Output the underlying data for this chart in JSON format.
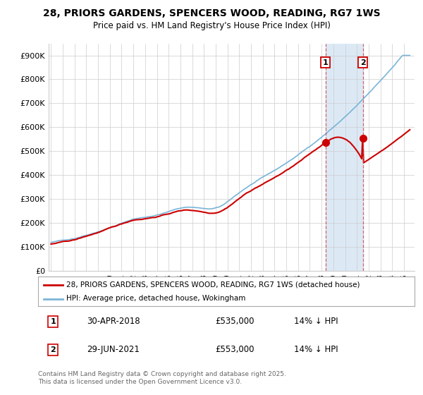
{
  "title_line1": "28, PRIORS GARDENS, SPENCERS WOOD, READING, RG7 1WS",
  "title_line2": "Price paid vs. HM Land Registry's House Price Index (HPI)",
  "yticks": [
    0,
    100000,
    200000,
    300000,
    400000,
    500000,
    600000,
    700000,
    800000,
    900000
  ],
  "ytick_labels": [
    "£0",
    "£100K",
    "£200K",
    "£300K",
    "£400K",
    "£500K",
    "£600K",
    "£700K",
    "£800K",
    "£900K"
  ],
  "hpi_color": "#7ab4d8",
  "price_color": "#cc0000",
  "ann1_year": 2018.33,
  "ann2_year": 2021.5,
  "ann1_price": 535000,
  "ann2_price": 553000,
  "legend_label1": "28, PRIORS GARDENS, SPENCERS WOOD, READING, RG7 1WS (detached house)",
  "legend_label2": "HPI: Average price, detached house, Wokingham",
  "footer": "Contains HM Land Registry data © Crown copyright and database right 2025.\nThis data is licensed under the Open Government Licence v3.0.",
  "background_color": "#ffffff",
  "grid_color": "#cccccc",
  "shade_color": "#dce9f5"
}
